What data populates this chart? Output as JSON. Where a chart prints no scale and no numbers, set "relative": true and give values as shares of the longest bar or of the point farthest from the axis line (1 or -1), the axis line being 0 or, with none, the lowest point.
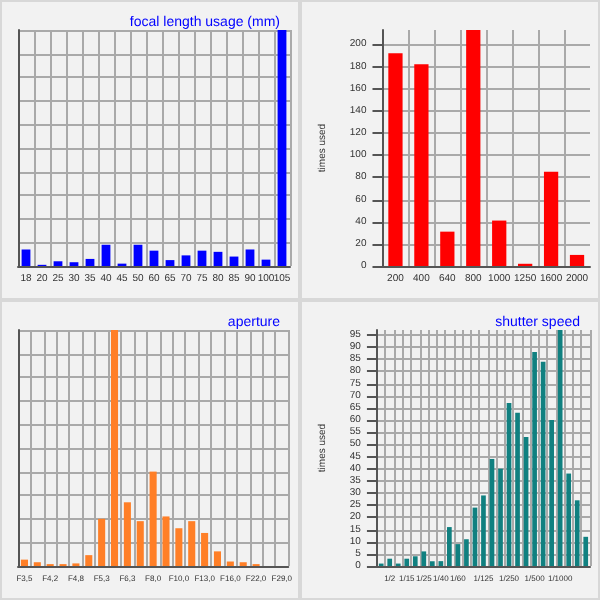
{
  "chart_data": [
    {
      "type": "bar",
      "title": "focal length usage (mm)",
      "relative": true,
      "grid": true,
      "tick_labels": "x",
      "categories": [
        "18",
        "20",
        "25",
        "30",
        "35",
        "40",
        "45",
        "50",
        "60",
        "65",
        "70",
        "75",
        "80",
        "85",
        "90",
        "100",
        "105"
      ],
      "series": [
        {
          "color": "#0000ff",
          "values": [
            0.07,
            0.005,
            0.02,
            0.016,
            0.03,
            0.09,
            0.01,
            0.09,
            0.065,
            0.025,
            0.045,
            0.065,
            0.06,
            0.04,
            0.07,
            0.027,
            1
          ]
        }
      ]
    },
    {
      "type": "bar",
      "ylabel": "times used",
      "grid": true,
      "ylim": [
        0,
        213
      ],
      "yticks": [
        0,
        20,
        40,
        60,
        80,
        100,
        120,
        140,
        160,
        180,
        200
      ],
      "categories": [
        "200",
        "400",
        "640",
        "800",
        "1000",
        "1250",
        "1600",
        "2000"
      ],
      "series": [
        {
          "color": "#ff0000",
          "values": [
            192,
            182,
            31,
            213,
            41,
            2,
            85,
            10
          ]
        }
      ]
    },
    {
      "type": "bar",
      "title": "aperture",
      "relative": true,
      "grid": true,
      "tick_labels": "x",
      "categories": [
        "F3,5",
        null,
        "F4,2",
        null,
        "F4,8",
        null,
        "F5,3",
        null,
        "F6,3",
        null,
        "F8,0",
        null,
        "F10,0",
        null,
        "F13,0",
        null,
        "F16,0",
        null,
        "F22,0",
        null,
        "F29,0"
      ],
      "series": [
        {
          "color": "#ff7f27",
          "values": [
            0.027,
            0.016,
            0.008,
            0.008,
            0.011,
            0.046,
            0.2,
            1,
            0.27,
            0.19,
            0.4,
            0.21,
            0.16,
            0.19,
            0.14,
            0.062,
            0.019,
            0.016,
            0.008,
            0,
            0
          ]
        }
      ]
    },
    {
      "type": "bar",
      "title": "shutter speed",
      "ylabel": "times used",
      "grid": true,
      "ylim": [
        0,
        97
      ],
      "yticks": [
        0,
        5,
        10,
        15,
        20,
        25,
        30,
        35,
        40,
        45,
        50,
        55,
        60,
        65,
        70,
        75,
        80,
        85,
        90,
        95
      ],
      "categories": [
        null,
        "1/2",
        null,
        "1/15",
        null,
        "1/25",
        null,
        "1/40",
        null,
        "1/60",
        null,
        null,
        "1/125",
        null,
        null,
        "1/250",
        null,
        null,
        "1/500",
        null,
        null,
        "1/1000",
        null,
        null,
        null
      ],
      "series": [
        {
          "color": "#108080",
          "values": [
            1,
            3,
            1,
            3,
            4,
            6,
            2,
            2,
            16,
            9,
            11,
            24,
            29,
            44,
            40,
            67,
            63,
            53,
            88,
            84,
            60,
            97,
            38,
            27,
            12
          ]
        }
      ]
    }
  ]
}
